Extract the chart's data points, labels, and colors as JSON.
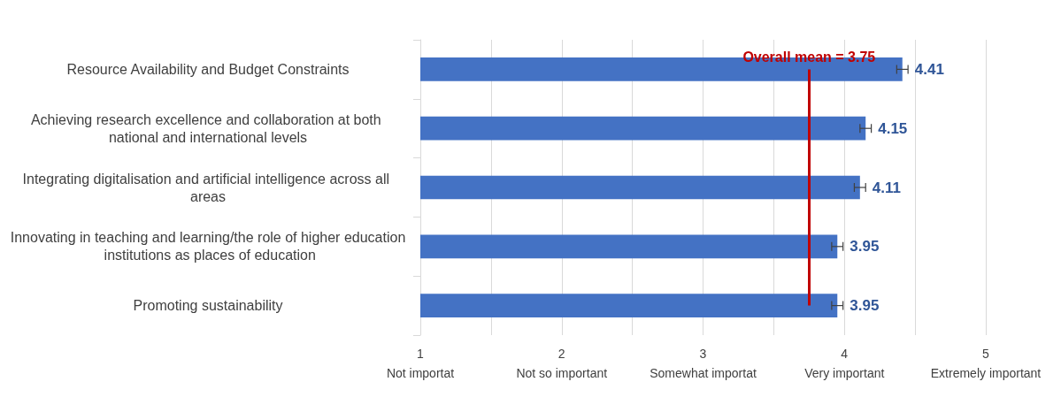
{
  "chart_data": {
    "type": "bar",
    "orientation": "horizontal",
    "categories": [
      "Resource Availability and Budget Constraints",
      "Achieving research excellence and collaboration at both national and international levels",
      "Integrating digitalisation and artificial intelligence across all areas",
      "Innovating in teaching and learning/the role of higher education institutions as places of education",
      "Promoting sustainability"
    ],
    "values": [
      4.41,
      4.15,
      4.11,
      3.95,
      3.95
    ],
    "errors": [
      0.04,
      0.04,
      0.04,
      0.04,
      0.04
    ],
    "color": "#4472c4",
    "data_labels": true,
    "xlim": [
      1,
      5
    ],
    "xticks": [
      {
        "value": 1,
        "label": "1\nNot importat"
      },
      {
        "value": 1.5,
        "label": null
      },
      {
        "value": 2,
        "label": "2\nNot so important"
      },
      {
        "value": 2.5,
        "label": null
      },
      {
        "value": 3,
        "label": "3\nSomewhat importat"
      },
      {
        "value": 3.5,
        "label": null
      },
      {
        "value": 4,
        "label": "4\nVery important"
      },
      {
        "value": 4.5,
        "label": null
      },
      {
        "value": 5,
        "label": "5\nExtremely important"
      }
    ],
    "grid": "x",
    "ref_lines": [
      {
        "axis": "x",
        "value": 3.75,
        "label": "Overall mean = 3.75",
        "color": "#c00000"
      }
    ]
  }
}
